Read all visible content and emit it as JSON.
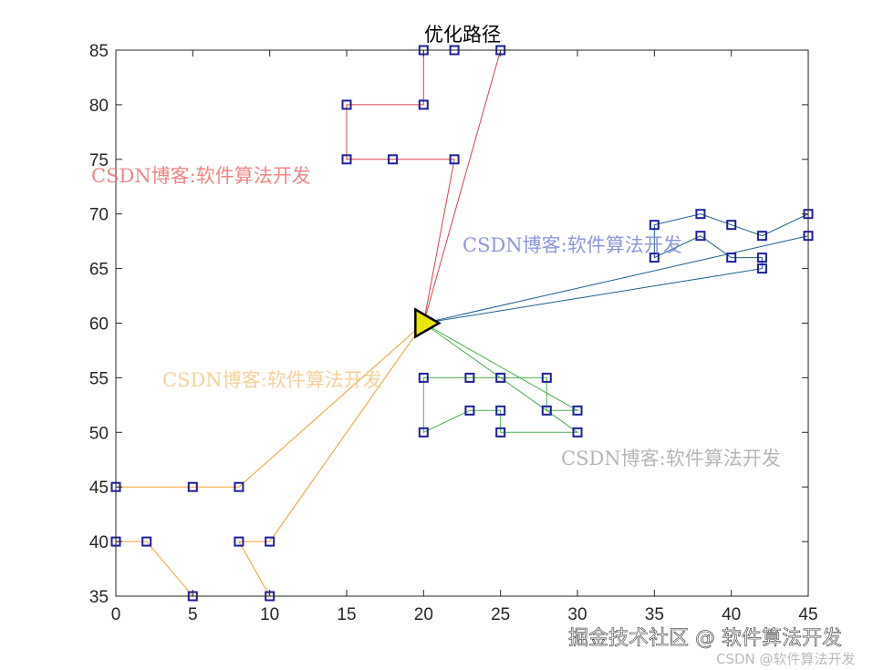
{
  "chart_data": {
    "type": "line",
    "title": "优化路径",
    "xlim": [
      0,
      45
    ],
    "ylim": [
      35,
      85
    ],
    "x_ticks": [
      "0",
      "5",
      "10",
      "15",
      "20",
      "25",
      "30",
      "35",
      "40",
      "45"
    ],
    "y_ticks": [
      "35",
      "40",
      "45",
      "50",
      "55",
      "60",
      "65",
      "70",
      "75",
      "80",
      "85"
    ],
    "grid": false,
    "depot": {
      "x": 20,
      "y": 60,
      "color": "#e6e600"
    },
    "marker_color": "#1f1f9e",
    "routes": [
      {
        "color": "#d6414a",
        "points": [
          [
            20,
            60
          ],
          [
            22,
            75
          ],
          [
            18,
            75
          ],
          [
            15,
            75
          ],
          [
            15,
            80
          ],
          [
            20,
            80
          ],
          [
            20,
            85
          ],
          [
            22,
            85
          ],
          [
            25,
            85
          ],
          [
            20,
            60
          ]
        ]
      },
      {
        "color": "#1b5e8a",
        "points": [
          [
            20,
            60
          ],
          [
            45,
            68
          ],
          [
            45,
            70
          ],
          [
            42,
            68
          ],
          [
            40,
            69
          ],
          [
            38,
            70
          ],
          [
            35,
            69
          ],
          [
            35,
            66
          ],
          [
            38,
            68
          ],
          [
            40,
            66
          ],
          [
            42,
            66
          ],
          [
            42,
            65
          ],
          [
            20,
            60
          ]
        ]
      },
      {
        "color": "#4caf50",
        "points": [
          [
            20,
            60
          ],
          [
            30,
            52
          ],
          [
            28,
            52
          ],
          [
            28,
            55
          ],
          [
            25,
            55
          ],
          [
            23,
            55
          ],
          [
            20,
            55
          ],
          [
            20,
            50
          ],
          [
            23,
            52
          ],
          [
            25,
            52
          ],
          [
            25,
            50
          ],
          [
            30,
            50
          ],
          [
            20,
            60
          ]
        ]
      },
      {
        "color": "#f0a030",
        "points": [
          [
            20,
            60
          ],
          [
            8,
            45
          ],
          [
            5,
            45
          ],
          [
            0,
            45
          ],
          [
            0,
            40
          ],
          [
            2,
            40
          ],
          [
            5,
            35
          ],
          [
            10,
            35
          ],
          [
            8,
            40
          ],
          [
            10,
            40
          ],
          [
            20,
            60
          ]
        ]
      }
    ]
  },
  "watermarks": [
    {
      "text": "CSDN博客:软件算法开发",
      "color": "#ec7070"
    },
    {
      "text": "CSDN博客:软件算法开发",
      "color": "#7a86d6"
    },
    {
      "text": "CSDN博客:软件算法开发",
      "color": "#f5c98a"
    },
    {
      "text": "CSDN博客:软件算法开发",
      "color": "#aaaaaa"
    }
  ],
  "footer": {
    "main": "掘金技术社区 @ 软件算法开发",
    "sub": "CSDN @软件算法开发"
  }
}
